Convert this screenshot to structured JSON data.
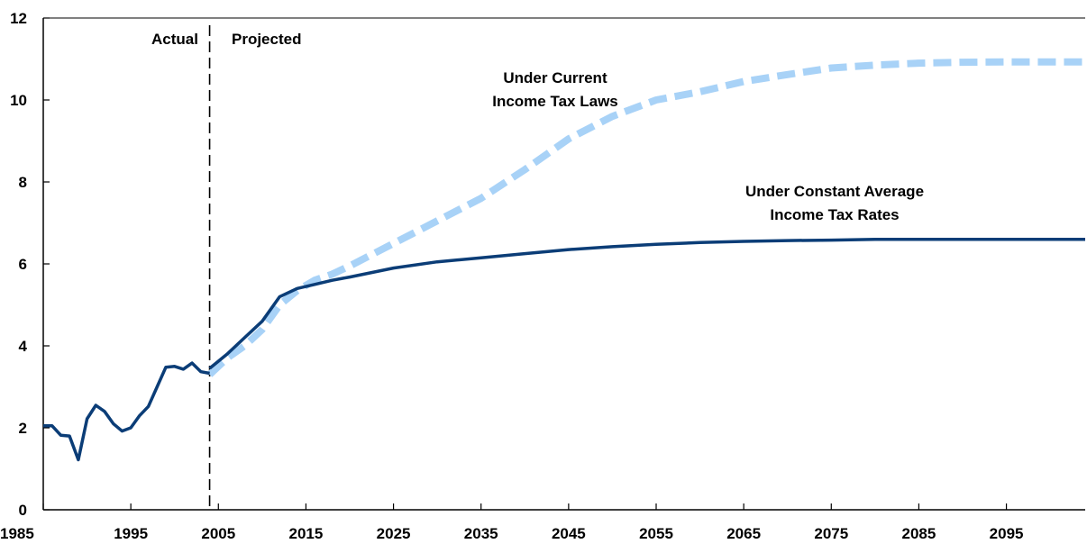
{
  "chart_data": {
    "type": "line",
    "title": "",
    "xlabel": "",
    "ylabel": "",
    "xlim": [
      1985,
      2104
    ],
    "ylim": [
      0,
      12
    ],
    "x_ticks": [
      1985,
      1995,
      2005,
      2015,
      2025,
      2035,
      2045,
      2055,
      2065,
      2075,
      2085,
      2095
    ],
    "y_ticks": [
      0,
      2,
      4,
      6,
      8,
      10,
      12
    ],
    "grid": false,
    "divider_year": 2004,
    "annotations": {
      "actual": "Actual",
      "projected": "Projected",
      "current_laws_line1": "Under Current",
      "current_laws_line2": "Income Tax Laws",
      "constant_rates_line1": "Under Constant Average",
      "constant_rates_line2": "Income Tax Rates"
    },
    "colors": {
      "constant_rates": "#0b3d77",
      "current_laws": "#a8d2f7",
      "axis": "#000000"
    },
    "series": [
      {
        "key": "historical",
        "style": "solid",
        "x": [
          1985,
          1986,
          1987,
          1988,
          1989,
          1990,
          1991,
          1992,
          1993,
          1994,
          1995,
          1996,
          1997,
          1998,
          1999,
          2000,
          2001,
          2002,
          2003,
          2004
        ],
        "values": [
          2.05,
          2.05,
          1.82,
          1.8,
          1.22,
          2.22,
          2.55,
          2.4,
          2.1,
          1.92,
          2.0,
          2.3,
          2.52,
          3.0,
          3.48,
          3.5,
          3.43,
          3.58,
          3.37,
          3.33
        ]
      },
      {
        "key": "constant_rates",
        "style": "solid",
        "x": [
          2004,
          2006,
          2008,
          2010,
          2012,
          2014,
          2016,
          2018,
          2020,
          2025,
          2030,
          2035,
          2040,
          2045,
          2050,
          2055,
          2060,
          2065,
          2070,
          2075,
          2080,
          2085,
          2090,
          2095,
          2100,
          2104
        ],
        "values": [
          3.45,
          3.8,
          4.2,
          4.6,
          5.2,
          5.4,
          5.5,
          5.6,
          5.68,
          5.9,
          6.05,
          6.15,
          6.25,
          6.35,
          6.42,
          6.48,
          6.52,
          6.55,
          6.57,
          6.58,
          6.6,
          6.6,
          6.6,
          6.6,
          6.6,
          6.6
        ]
      },
      {
        "key": "current_laws",
        "style": "dashed",
        "x": [
          2004,
          2006,
          2008,
          2010,
          2012,
          2014,
          2016,
          2018,
          2020,
          2025,
          2030,
          2035,
          2040,
          2045,
          2050,
          2055,
          2060,
          2065,
          2070,
          2075,
          2080,
          2085,
          2090,
          2095,
          2100,
          2104
        ],
        "values": [
          3.3,
          3.7,
          4.0,
          4.4,
          5.0,
          5.35,
          5.6,
          5.75,
          5.95,
          6.5,
          7.05,
          7.6,
          8.3,
          9.05,
          9.6,
          10.0,
          10.2,
          10.45,
          10.62,
          10.78,
          10.85,
          10.9,
          10.92,
          10.93,
          10.93,
          10.93
        ]
      }
    ]
  }
}
